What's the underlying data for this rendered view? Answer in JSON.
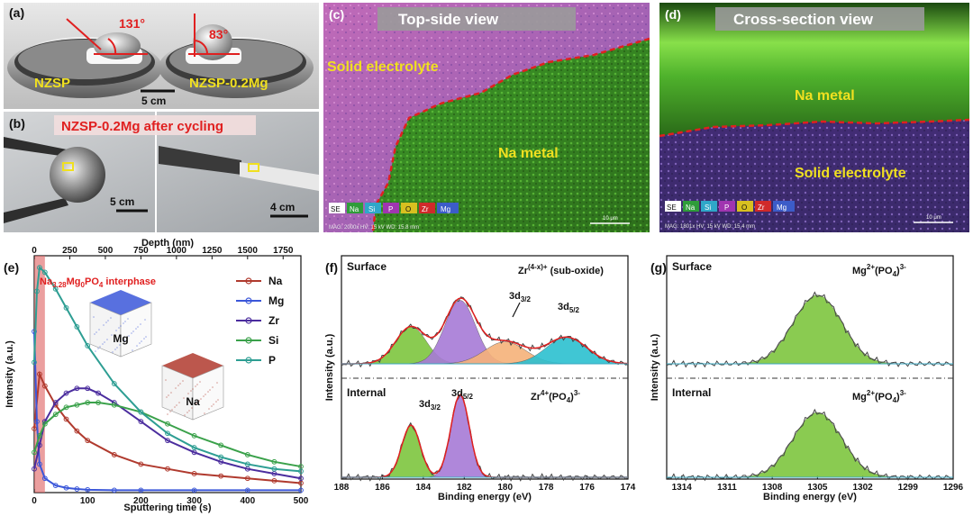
{
  "panel_a": {
    "letter": "(a)",
    "angle_left": "131°",
    "angle_right": "83°",
    "sample_left": "NZSP",
    "sample_right": "NZSP-0.2Mg",
    "scale": "5 cm"
  },
  "panel_b": {
    "letter": "(b)",
    "title": "NZSP-0.2Mg after cycling",
    "scale_left": "5 cm",
    "scale_right": "4 cm"
  },
  "panel_c": {
    "letter": "(c)",
    "title": "Top-side view",
    "label_electrolyte": "Solid electrolyte",
    "label_metal": "Na metal",
    "legend": [
      "SE",
      "Na",
      "Si",
      "P",
      "O",
      "Zr",
      "Mg"
    ],
    "meta": "MAG: 2000x   HV: 15 kV   WD: 15.8 mm",
    "scalebar": "10 μm"
  },
  "panel_d": {
    "letter": "(d)",
    "title": "Cross-section view",
    "label_metal": "Na metal",
    "label_electrolyte": "Solid electrolyte",
    "legend": [
      "SE",
      "Na",
      "Si",
      "P",
      "O",
      "Zr",
      "Mg"
    ],
    "meta": "MAG: 1801x   HV: 15 kV   WD: 15.4 mm",
    "scalebar": "10 μm"
  },
  "colors": {
    "Na": "#b03a2e",
    "Mg": "#3b57d9",
    "Zr": "#4b2d9e",
    "Si": "#3aa14a",
    "P": "#2e9e93",
    "interphase": "#e06b6b",
    "fit_red": "#e02020",
    "fit_green": "#7ec63f",
    "fit_purple": "#a77bd6",
    "fit_orange": "#f6b27a",
    "fit_cyan": "#2cc0d0"
  },
  "chart_data": [
    {
      "panel": "(e)",
      "type": "line",
      "xlabel": "Sputtering time (s)",
      "ylabel": "Intensity (a.u.)",
      "xlim": [
        0,
        500
      ],
      "x_ticks": [
        0,
        100,
        200,
        300,
        400,
        500
      ],
      "top_axis_label": "Depth (nm)",
      "top_xlim": [
        0,
        1875
      ],
      "top_ticks": [
        0,
        250,
        500,
        750,
        1000,
        1250,
        1500,
        1750
      ],
      "annotation": "Na3.28Mg0PO4 interphase",
      "annotation_parts": {
        "a": "Na",
        "b": "3.28",
        "c": "Mg",
        "d": "0",
        "e": "PO",
        "f": "4",
        "g": " interphase"
      },
      "interphase_range": [
        0,
        20
      ],
      "inset_labels": [
        "Mg",
        "Na"
      ],
      "legend_position": "top-right",
      "series": [
        {
          "name": "Na",
          "x": [
            0,
            10,
            20,
            40,
            60,
            80,
            100,
            150,
            200,
            250,
            300,
            350,
            400,
            450,
            500
          ],
          "y": [
            0.27,
            0.5,
            0.45,
            0.37,
            0.31,
            0.26,
            0.22,
            0.16,
            0.12,
            0.1,
            0.08,
            0.07,
            0.06,
            0.05,
            0.04
          ]
        },
        {
          "name": "Mg",
          "x": [
            0,
            5,
            10,
            20,
            40,
            60,
            80,
            100,
            150,
            200,
            300,
            400,
            500
          ],
          "y": [
            0.68,
            0.3,
            0.12,
            0.06,
            0.03,
            0.02,
            0.015,
            0.012,
            0.01,
            0.01,
            0.01,
            0.01,
            0.01
          ]
        },
        {
          "name": "Zr",
          "x": [
            0,
            10,
            20,
            40,
            60,
            80,
            100,
            120,
            150,
            200,
            250,
            300,
            350,
            400,
            450,
            500
          ],
          "y": [
            0.1,
            0.2,
            0.3,
            0.38,
            0.42,
            0.44,
            0.44,
            0.42,
            0.38,
            0.3,
            0.22,
            0.17,
            0.13,
            0.1,
            0.08,
            0.06
          ]
        },
        {
          "name": "Si",
          "x": [
            0,
            10,
            20,
            40,
            60,
            80,
            100,
            120,
            150,
            200,
            250,
            300,
            350,
            400,
            450,
            500
          ],
          "y": [
            0.17,
            0.24,
            0.29,
            0.33,
            0.36,
            0.37,
            0.38,
            0.38,
            0.37,
            0.34,
            0.29,
            0.24,
            0.2,
            0.16,
            0.13,
            0.11
          ]
        },
        {
          "name": "P",
          "x": [
            0,
            5,
            10,
            20,
            40,
            60,
            80,
            100,
            150,
            200,
            250,
            300,
            350,
            400,
            450,
            500
          ],
          "y": [
            0.55,
            0.85,
            0.95,
            0.93,
            0.86,
            0.78,
            0.7,
            0.62,
            0.46,
            0.34,
            0.25,
            0.19,
            0.15,
            0.12,
            0.1,
            0.09
          ]
        }
      ]
    },
    {
      "panel": "(f)",
      "type": "line",
      "xlabel": "Binding energy (eV)",
      "ylabel": "Intensity (a.u.)",
      "xlim": [
        188,
        174
      ],
      "x_reversed": true,
      "x_ticks": [
        188,
        186,
        184,
        182,
        180,
        178,
        176,
        174
      ],
      "surface": {
        "label": "Surface",
        "species": "Zr(4-x)+ (sub-oxide)",
        "species_parts": {
          "a": "Zr",
          "b": "(4-x)+",
          "c": " (sub-oxide)"
        },
        "peak_labels": [
          {
            "pos": 180,
            "a": "3d",
            "b": "3/2"
          },
          {
            "pos": 177,
            "a": "3d",
            "b": "5/2"
          }
        ],
        "peaks": [
          {
            "color": "green",
            "center": 184.6,
            "height": 0.42,
            "width": 0.75
          },
          {
            "color": "purple",
            "center": 182.2,
            "height": 0.72,
            "width": 0.75
          },
          {
            "color": "orange",
            "center": 180.0,
            "height": 0.25,
            "width": 1.0
          },
          {
            "color": "cyan",
            "center": 177.0,
            "height": 0.3,
            "width": 1.0
          }
        ]
      },
      "internal": {
        "label": "Internal",
        "species": "Zr4+(PO4)3-",
        "species_parts": {
          "a": "Zr",
          "b": "4+",
          "c": "(PO",
          "d": "4",
          "e": ")",
          "f": "3-"
        },
        "peak_labels": [
          {
            "pos": 184.6,
            "a": "3d",
            "b": "3/2"
          },
          {
            "pos": 182.2,
            "a": "3d",
            "b": "5/2"
          }
        ],
        "peaks": [
          {
            "color": "green",
            "center": 184.6,
            "height": 0.58,
            "width": 0.45
          },
          {
            "color": "purple",
            "center": 182.2,
            "height": 0.92,
            "width": 0.45
          }
        ]
      }
    },
    {
      "panel": "(g)",
      "type": "line",
      "xlabel": "Binding energy (eV)",
      "ylabel": "Intensity (a.u.)",
      "xlim": [
        1315,
        1296
      ],
      "x_reversed": true,
      "x_ticks": [
        1314,
        1311,
        1308,
        1305,
        1302,
        1299,
        1296
      ],
      "surface": {
        "label": "Surface",
        "species": "Mg2+(PO4)3-",
        "species_parts": {
          "a": "Mg",
          "b": "2+",
          "c": "(PO",
          "d": "4",
          "e": ")",
          "f": "3-"
        },
        "peaks": [
          {
            "color": "green",
            "center": 1305.0,
            "height": 0.78,
            "width": 1.6
          }
        ]
      },
      "internal": {
        "label": "Internal",
        "species": "Mg2+(PO4)3-",
        "species_parts": {
          "a": "Mg",
          "b": "2+",
          "c": "(PO",
          "d": "4",
          "e": ")",
          "f": "3-"
        },
        "peaks": [
          {
            "color": "green",
            "center": 1305.0,
            "height": 0.72,
            "width": 1.6
          }
        ]
      }
    }
  ]
}
